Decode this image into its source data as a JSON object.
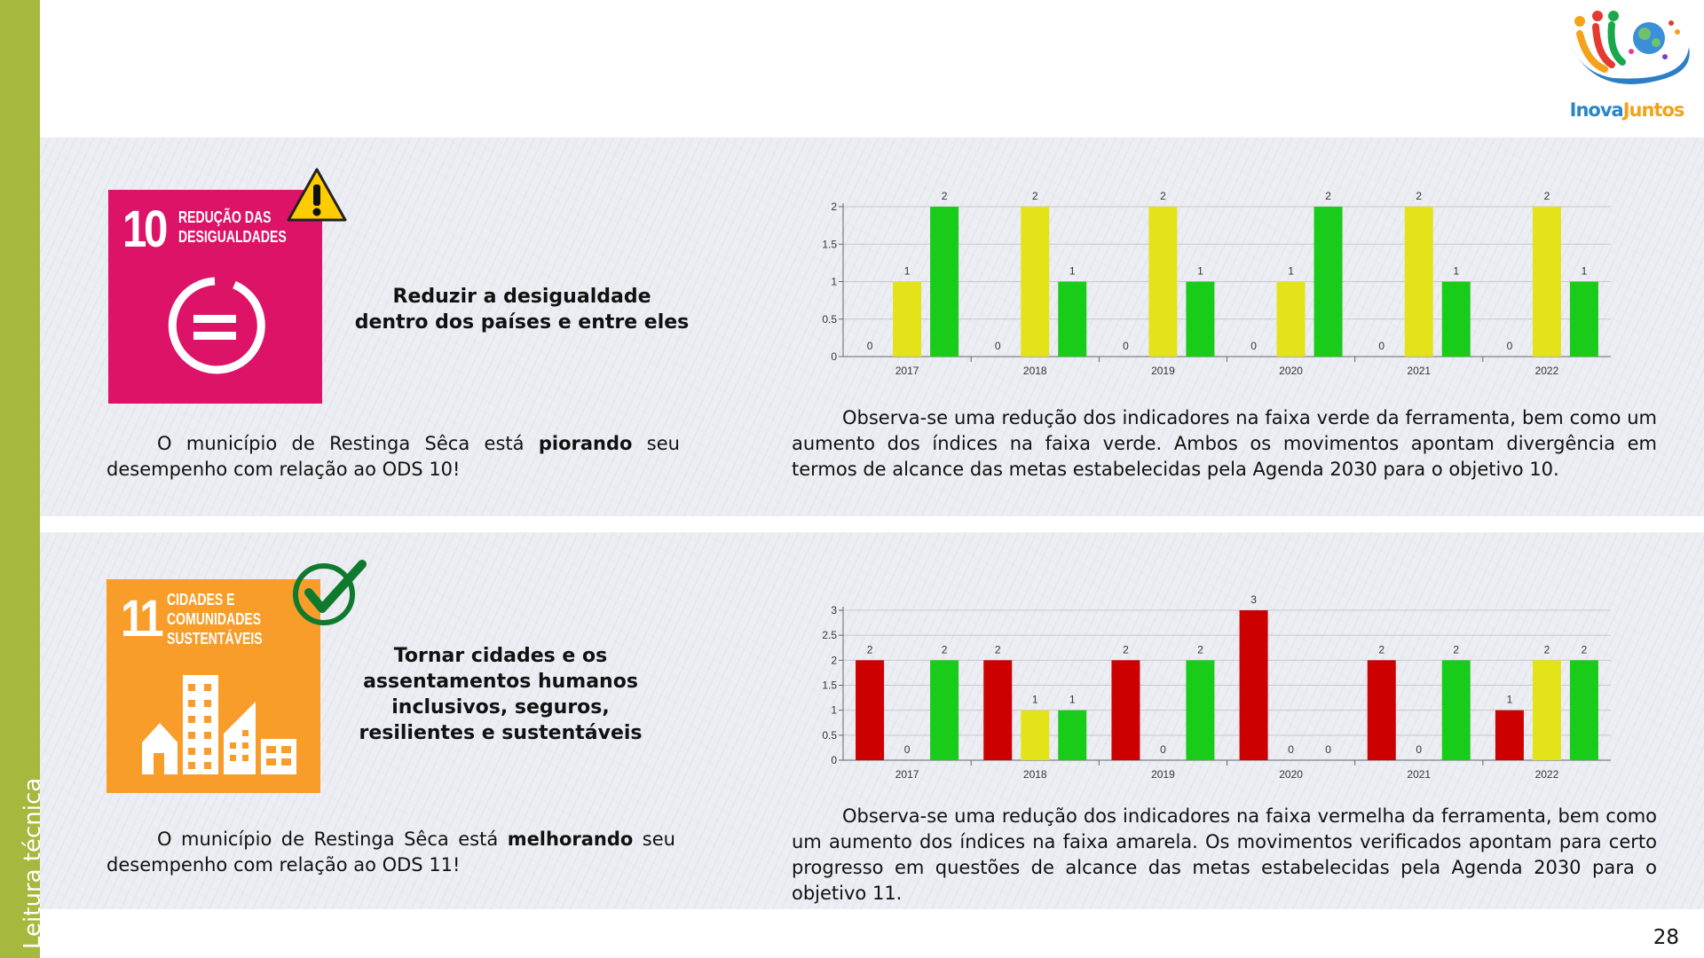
{
  "sidebar": {
    "label": "Leitura técnica"
  },
  "logo": {
    "text_part1": "Inova",
    "text_part2": "Juntos"
  },
  "page_number": "28",
  "colors": {
    "red": "#cc0000",
    "yellow": "#e3e31a",
    "green": "#19cc19",
    "sidebar": "#a6b83e"
  },
  "sections": [
    {
      "sdg": {
        "number": "10",
        "title_line1": "REDUÇÃO DAS",
        "title_line2": "DESIGUALDADES",
        "color": "#dd1367",
        "icon": "equality-icon",
        "status_icon": "warning-icon"
      },
      "goal": "Reduzir a desigualdade dentro dos países e entre eles",
      "summary": {
        "before": "O município de Restinga Sêca está ",
        "bold": "piorando",
        "after": " seu desempenho com relação ao ODS 10!"
      },
      "observation": "Observa-se uma redução dos indicadores na faixa verde da ferramenta, bem como um aumento dos índices na faixa verde. Ambos os movimentos apontam divergência em termos de alcance das metas estabelecidas pela Agenda 2030 para o objetivo 10."
    },
    {
      "sdg": {
        "number": "11",
        "title_line1": "CIDADES E",
        "title_line2": "COMUNIDADES",
        "title_line3": "SUSTENTÁVEIS",
        "color": "#f89d2a",
        "icon": "buildings-icon",
        "status_icon": "checkmark-icon"
      },
      "goal": "Tornar cidades e os assentamentos humanos inclusivos, seguros, resilientes e sustentáveis",
      "summary": {
        "before": "O município de Restinga Sêca está ",
        "bold": "melhorando",
        "after": " seu desempenho com relação ao ODS 11!"
      },
      "observation": "Observa-se uma redução dos indicadores na faixa vermelha da ferramenta, bem como um aumento dos índices na faixa amarela. Os movimentos verificados apontam para certo progresso em questões de alcance das metas estabelecidas pela Agenda 2030 para o objetivo 11."
    }
  ],
  "chart_data": [
    {
      "type": "bar",
      "categories": [
        "2017",
        "2018",
        "2019",
        "2020",
        "2021",
        "2022"
      ],
      "category_labels": [
        "2017",
        "2018",
        "2019",
        "2020",
        "2021",
        "2022"
      ],
      "series": [
        {
          "color": "#cc0000",
          "values": [
            0,
            0,
            0,
            0,
            0,
            0
          ]
        },
        {
          "color": "#e3e31a",
          "values": [
            1,
            2,
            2,
            1,
            2,
            2
          ]
        },
        {
          "color": "#19cc19",
          "values": [
            2,
            1,
            1,
            2,
            1,
            1
          ]
        }
      ],
      "ylim": [
        0,
        2
      ],
      "yticks": [
        "0",
        "0.5",
        "1",
        "1.5",
        "2"
      ],
      "ytick_values": [
        0,
        0.5,
        1,
        1.5,
        2
      ],
      "grid": true
    },
    {
      "type": "bar",
      "categories": [
        "2017",
        "2018",
        "2019",
        "2020",
        "2021",
        "2022"
      ],
      "category_labels": [
        "2017",
        "2018",
        "2019",
        "2020",
        "2021",
        "2022"
      ],
      "series": [
        {
          "color": "#cc0000",
          "values": [
            2,
            2,
            2,
            3,
            2,
            1
          ]
        },
        {
          "color": "#e3e31a",
          "values": [
            0,
            1,
            0,
            0,
            0,
            2
          ]
        },
        {
          "color": "#19cc19",
          "values": [
            2,
            1,
            2,
            0,
            2,
            2
          ]
        }
      ],
      "ylim": [
        0,
        3
      ],
      "yticks": [
        "0",
        "0.5",
        "1",
        "1.5",
        "2",
        "2.5",
        "3"
      ],
      "ytick_values": [
        0,
        0.5,
        1,
        1.5,
        2,
        2.5,
        3
      ],
      "grid": true
    }
  ]
}
